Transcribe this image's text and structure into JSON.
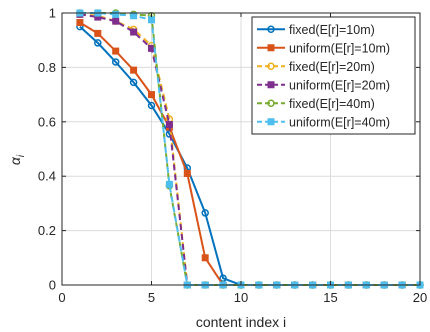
{
  "chart_data": {
    "type": "line",
    "xlabel": "content index i",
    "ylabel": "α_i",
    "xlim": [
      0,
      20
    ],
    "ylim": [
      0,
      1
    ],
    "xticks": [
      0,
      5,
      10,
      15,
      20
    ],
    "yticks": [
      0,
      0.2,
      0.4,
      0.6,
      0.8,
      1
    ],
    "ytick_labels": [
      "0",
      "0.2",
      "0.4",
      "0.6",
      "0.8",
      "1"
    ],
    "grid": true,
    "legend_position": "top-right",
    "x": [
      1,
      2,
      3,
      4,
      5,
      6,
      7,
      8,
      9,
      10,
      11,
      12,
      13,
      14,
      15,
      16,
      17,
      18,
      19,
      20
    ],
    "series": [
      {
        "name": "fixed(E[r]=10m)",
        "color": "#0072BD",
        "marker": "circle",
        "dash": "solid",
        "values": [
          0.95,
          0.89,
          0.82,
          0.745,
          0.66,
          0.555,
          0.43,
          0.265,
          0.025,
          0,
          0,
          0,
          0,
          0,
          0,
          0,
          0,
          0,
          0,
          0
        ]
      },
      {
        "name": "uniform(E[r]=10m)",
        "color": "#D95319",
        "marker": "square",
        "dash": "solid",
        "values": [
          0.965,
          0.925,
          0.86,
          0.79,
          0.7,
          0.58,
          0.41,
          0.1,
          0,
          0,
          0,
          0,
          0,
          0,
          0,
          0,
          0,
          0,
          0,
          0
        ]
      },
      {
        "name": "fixed(E[r]=20m)",
        "color": "#EDB120",
        "marker": "circle",
        "dash": "dashed",
        "values": [
          0.995,
          0.99,
          0.97,
          0.94,
          0.88,
          0.61,
          0,
          0,
          0,
          0,
          0,
          0,
          0,
          0,
          0,
          0,
          0,
          0,
          0,
          0
        ]
      },
      {
        "name": "uniform(E[r]=20m)",
        "color": "#7E2F8E",
        "marker": "square",
        "dash": "dashed",
        "values": [
          0.995,
          0.985,
          0.97,
          0.93,
          0.87,
          0.59,
          0,
          0,
          0,
          0,
          0,
          0,
          0,
          0,
          0,
          0,
          0,
          0,
          0,
          0
        ]
      },
      {
        "name": "fixed(E[r]=40m)",
        "color": "#77AC30",
        "marker": "circle",
        "dash": "dashed",
        "values": [
          1,
          1,
          1,
          0.995,
          0.99,
          0.365,
          0,
          0,
          0,
          0,
          0,
          0,
          0,
          0,
          0,
          0,
          0,
          0,
          0,
          0
        ]
      },
      {
        "name": "uniform(E[r]=40m)",
        "color": "#4DBEEE",
        "marker": "square",
        "dash": "dashed",
        "values": [
          1,
          1,
          0.995,
          0.99,
          0.975,
          0.37,
          0,
          0,
          0,
          0,
          0,
          0,
          0,
          0,
          0,
          0,
          0,
          0,
          0,
          0
        ]
      }
    ]
  }
}
